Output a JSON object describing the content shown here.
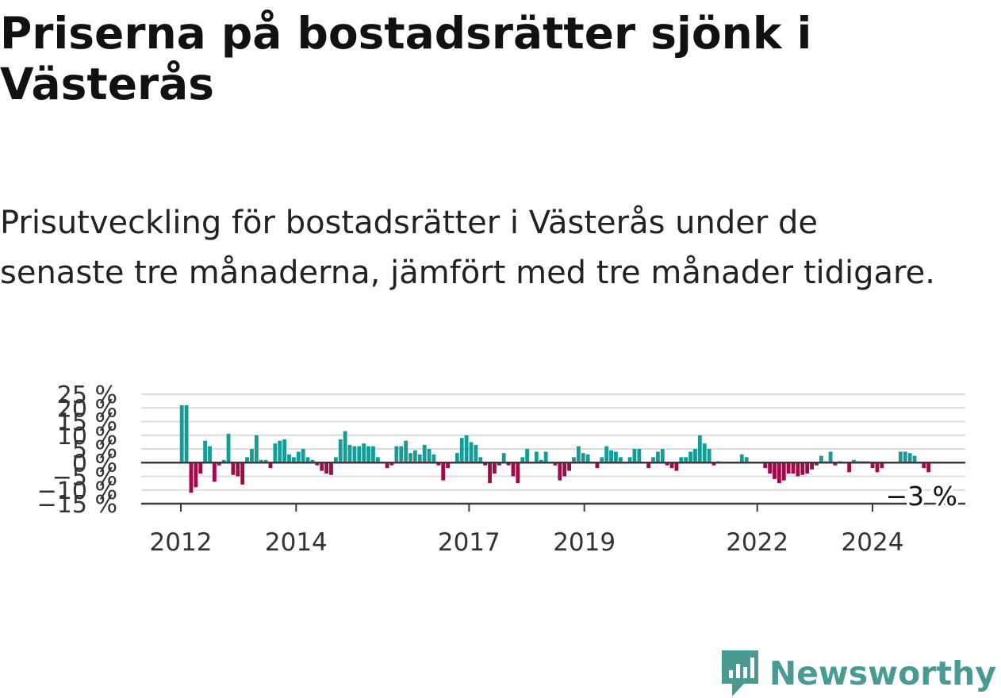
{
  "title": "Priserna på bostadsrätter sjönk i Västerås",
  "subtitle": "Prisutveckling för bostadsrätter i Västerås under de senaste tre månaderna, jämfört med tre månader tidigare.",
  "brand": {
    "name": "Newsworthy",
    "icon": "newsworthy-logo-icon"
  },
  "colors": {
    "positive": "#139d96",
    "negative": "#a3094a",
    "grid": "#dcdcdc",
    "axis": "#3a3a3a",
    "brand": "#4a9a94"
  },
  "chart_data": {
    "type": "bar",
    "title": "",
    "xlabel": "",
    "ylabel": "",
    "ylim": [
      -15,
      25
    ],
    "yticks": [
      -15,
      -10,
      -5,
      0,
      5,
      10,
      15,
      20,
      25
    ],
    "ytick_labels": [
      "−15 %",
      "−10 %",
      "−5 %",
      "0 %",
      "5 %",
      "10 %",
      "15 %",
      "20 %",
      "25 %"
    ],
    "xticks": [
      "2012",
      "2014",
      "2017",
      "2019",
      "2022",
      "2024"
    ],
    "grid": true,
    "start": "2012-01",
    "frequency": "monthly",
    "last_value_label": "−3 %",
    "values": [
      21,
      21,
      -11,
      -9,
      -4,
      8,
      6,
      -7,
      -1,
      1,
      10.5,
      -4.5,
      -5,
      -8,
      2,
      5,
      10,
      1,
      1,
      -2,
      7,
      8,
      8.5,
      3,
      2,
      4,
      5,
      2,
      1,
      -1,
      -3,
      -4,
      -4.5,
      2,
      8.5,
      11.5,
      6.5,
      6,
      6,
      7,
      6,
      6,
      2,
      0,
      -2,
      -1,
      6,
      6,
      8,
      3.5,
      4.5,
      3,
      6.5,
      5,
      3,
      -1,
      -6.5,
      -2,
      0,
      3.5,
      9,
      10,
      7.5,
      6.5,
      2,
      -1,
      -7.5,
      -4,
      -1,
      3.5,
      -1,
      -5,
      -7.5,
      2,
      5,
      0,
      4,
      1,
      4,
      0,
      -1,
      -6.5,
      -5,
      -3,
      2,
      6,
      3.5,
      3,
      0,
      -2,
      2,
      6,
      4.5,
      4,
      2,
      0,
      2,
      5,
      5,
      0,
      -2,
      2,
      4,
      5,
      -1,
      -2,
      -3,
      2,
      2,
      4,
      5,
      10,
      7,
      5,
      -1,
      0.5,
      0,
      0,
      0,
      0,
      3,
      2,
      0,
      0,
      0,
      -2,
      -4,
      -6,
      -7.5,
      -6.5,
      -4,
      -4,
      -5,
      -4.5,
      -4,
      -2.5,
      -1,
      2.5,
      0.5,
      4,
      -1,
      0.5,
      0,
      -3.5,
      1,
      0.5,
      0.5,
      0.5,
      -2,
      -3.5,
      -2,
      0,
      0,
      0,
      4,
      4,
      3.5,
      2.5,
      0,
      -2,
      -3.5
    ]
  }
}
